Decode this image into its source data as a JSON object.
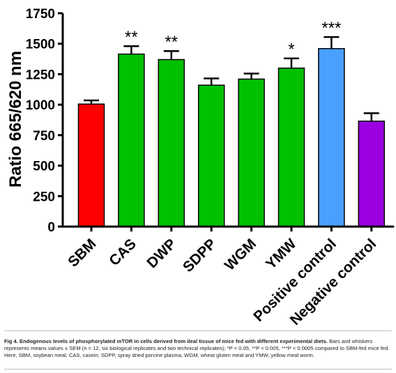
{
  "chart_data": {
    "type": "bar",
    "title": "",
    "xlabel": "",
    "ylabel": "Ratio 665/620 nm",
    "ylim": [
      0,
      1750
    ],
    "yticks": [
      0,
      250,
      500,
      750,
      1000,
      1250,
      1500,
      1750
    ],
    "grid": false,
    "categories": [
      "SBM",
      "CAS",
      "DWP",
      "SDPP",
      "WGM",
      "YMW",
      "Positive control",
      "Negative control"
    ],
    "values": [
      1005,
      1415,
      1370,
      1160,
      1210,
      1300,
      1460,
      865
    ],
    "errors": [
      30,
      65,
      70,
      55,
      45,
      80,
      95,
      65
    ],
    "significance": [
      "",
      "**",
      "**",
      "",
      "",
      "*",
      "***",
      ""
    ],
    "colors": [
      "#ff0000",
      "#00c000",
      "#00c000",
      "#00c000",
      "#00c000",
      "#00c000",
      "#4aa0ff",
      "#9a00e0"
    ]
  },
  "caption": {
    "bold": "Fig 4. Endogenous levels of phosphorylated mTOR in cells derived from ileal tissue of mice fed with different experimental diets.",
    "text": " Bars and whiskers represents means values ± SEM (n = 12, six biological replicates and two technical replicates); *P < 0.05, **P < 0.005, ***P < 0.0005 compared to SBM-fed mice fed. Here, SBM, soybean meal; CAS, casein; SDPP, spray dried porcine plasma; WGM, wheat gluten meal and YMW, yellow meal worm."
  }
}
